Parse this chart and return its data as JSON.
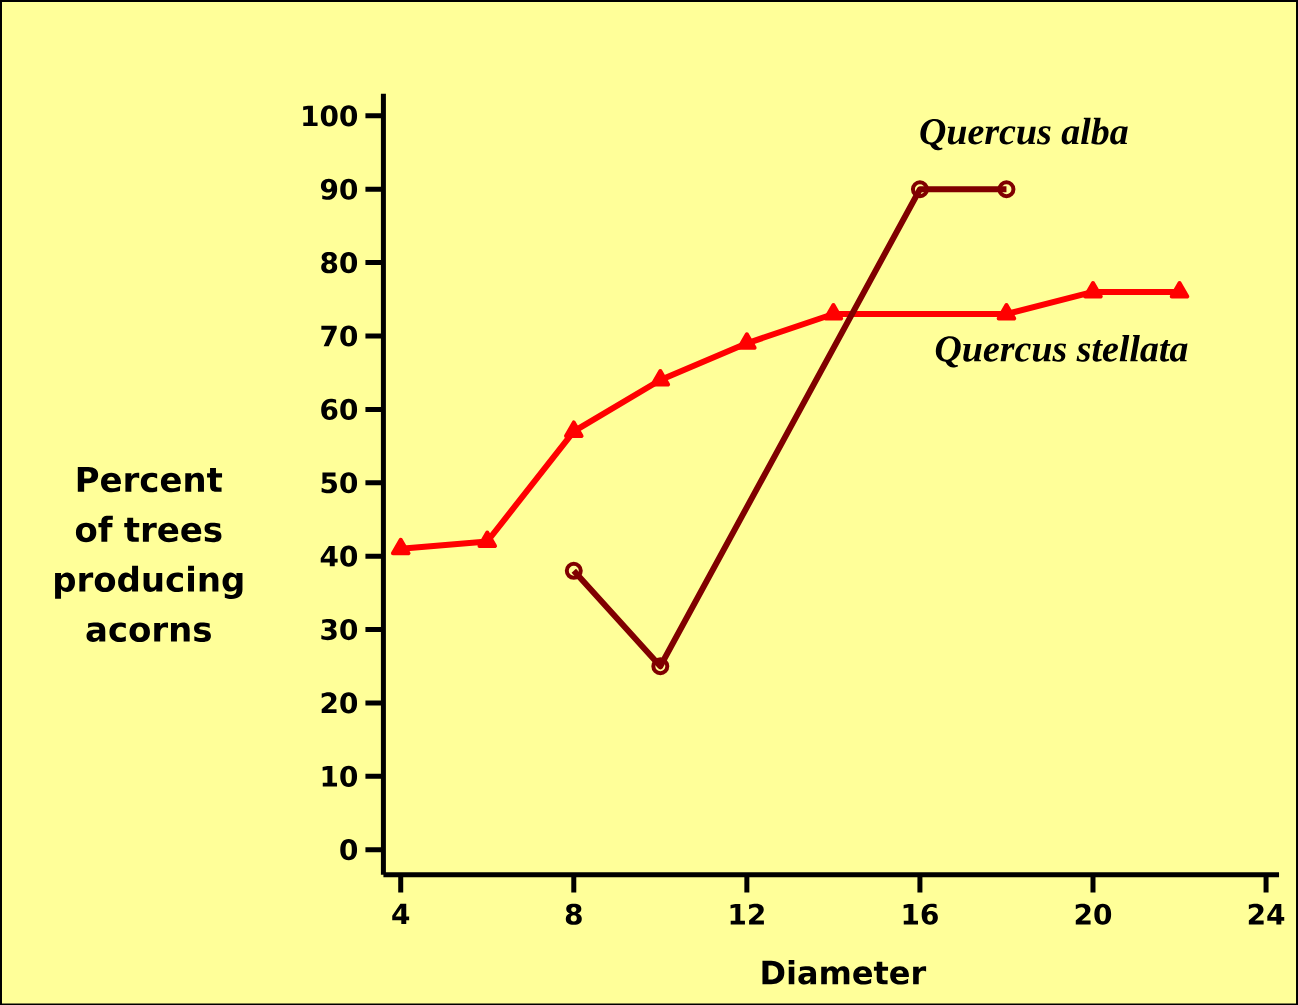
{
  "chart_data": {
    "type": "line",
    "xlabel": "Diameter",
    "ylabel": "Percent of trees producing acorns",
    "xlim": [
      3.6,
      24.3
    ],
    "xticks": [
      4,
      8,
      12,
      16,
      20,
      24
    ],
    "ylim": [
      -3.4,
      103
    ],
    "yticks": [
      0,
      10,
      20,
      30,
      40,
      50,
      60,
      70,
      80,
      90,
      100
    ],
    "grid": false,
    "legend": false,
    "line_style": "solid",
    "series": [
      {
        "name": "Quercus stellata",
        "color": "#ff0000",
        "marker": "triangle",
        "x": [
          4,
          6,
          8,
          10,
          12,
          14,
          18,
          20,
          22
        ],
        "values": [
          41,
          42,
          57,
          64,
          69,
          73,
          73,
          76,
          76
        ]
      },
      {
        "name": "Quercus alba",
        "color": "#800000",
        "marker": "circle",
        "x": [
          8,
          10,
          16,
          18
        ],
        "values": [
          38,
          25,
          90,
          90
        ]
      }
    ]
  }
}
